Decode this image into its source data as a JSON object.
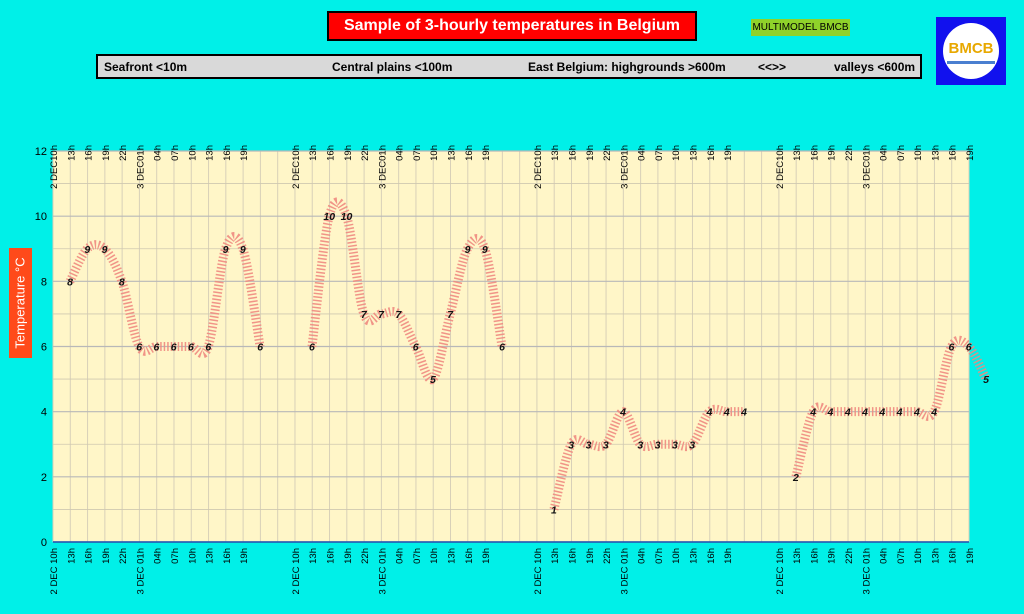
{
  "title": "Sample of 3-hourly temperatures in Belgium",
  "badge": "MULTIMODEL BMCB",
  "logo_text": "BMCB",
  "regions": {
    "seafront": "Seafront <10m",
    "central": "Central plains <100m",
    "east": "East Belgium: highgrounds >600m",
    "sep": "<<>>",
    "valleys": "valleys <600m"
  },
  "colors": {
    "background": "#00f0e8",
    "plot_bg": "#fff6c8",
    "line": "#f08a80",
    "title_bg": "#ff0000",
    "ylabel_bg": "#ff4a1a"
  },
  "chart_data": {
    "type": "line",
    "ylabel": "Temperature  °C",
    "ylim": [
      0,
      12
    ],
    "yticks": [
      0,
      2,
      4,
      6,
      8,
      10,
      12
    ],
    "grid": true,
    "x_labels": [
      "2 DEC10h",
      "13h",
      "16h",
      "19h",
      "22h",
      "3 DEC01h",
      "04h",
      "07h",
      "10h",
      "13h",
      "16h",
      "19h",
      "",
      "",
      "2 DEC10h",
      "13h",
      "16h",
      "19h",
      "22h",
      "3 DEC01h",
      "04h",
      "07h",
      "10h",
      "13h",
      "16h",
      "19h",
      "",
      "",
      "2 DEC10h",
      "13h",
      "16h",
      "19h",
      "22h",
      "3 DEC01h",
      "04h",
      "07h",
      "10h",
      "13h",
      "16h",
      "19h",
      "",
      "",
      "2 DEC10h",
      "13h",
      "16h",
      "19h",
      "22h",
      "3 DEC01h",
      "04h",
      "07h",
      "10h",
      "13h",
      "16h",
      "19h"
    ],
    "x_labels_bottom": [
      "2 DEC 10h",
      "13h",
      "16h",
      "19h",
      "22h",
      "3 DEC 01h",
      "04h",
      "07h",
      "10h",
      "13h",
      "16h",
      "19h",
      "",
      "",
      "2 DEC 10h",
      "13h",
      "16h",
      "19h",
      "22h",
      "3 DEC 01h",
      "04h",
      "07h",
      "10h",
      "13h",
      "16h",
      "19h",
      "",
      "",
      "2 DEC 10h",
      "13h",
      "16h",
      "19h",
      "22h",
      "3 DEC 01h",
      "04h",
      "07h",
      "10h",
      "13h",
      "16h",
      "19h",
      "",
      "",
      "2 DEC 10h",
      "13h",
      "16h",
      "19h",
      "22h",
      "3 DEC 01h",
      "04h",
      "07h",
      "10h",
      "13h",
      "16h",
      "19h"
    ],
    "series": [
      {
        "values": [
          8,
          9,
          9,
          8,
          6,
          6,
          6,
          6,
          6,
          9,
          9,
          6
        ]
      },
      {
        "values": [
          6,
          10,
          10,
          7,
          7,
          7,
          6,
          5,
          7,
          9,
          9,
          6
        ]
      },
      {
        "values": [
          1,
          3,
          3,
          3,
          4,
          3,
          3,
          3,
          3,
          4,
          4,
          4
        ]
      },
      {
        "values": [
          2,
          4,
          4,
          4,
          4,
          4,
          4,
          4,
          4,
          6,
          6,
          5
        ]
      }
    ]
  }
}
